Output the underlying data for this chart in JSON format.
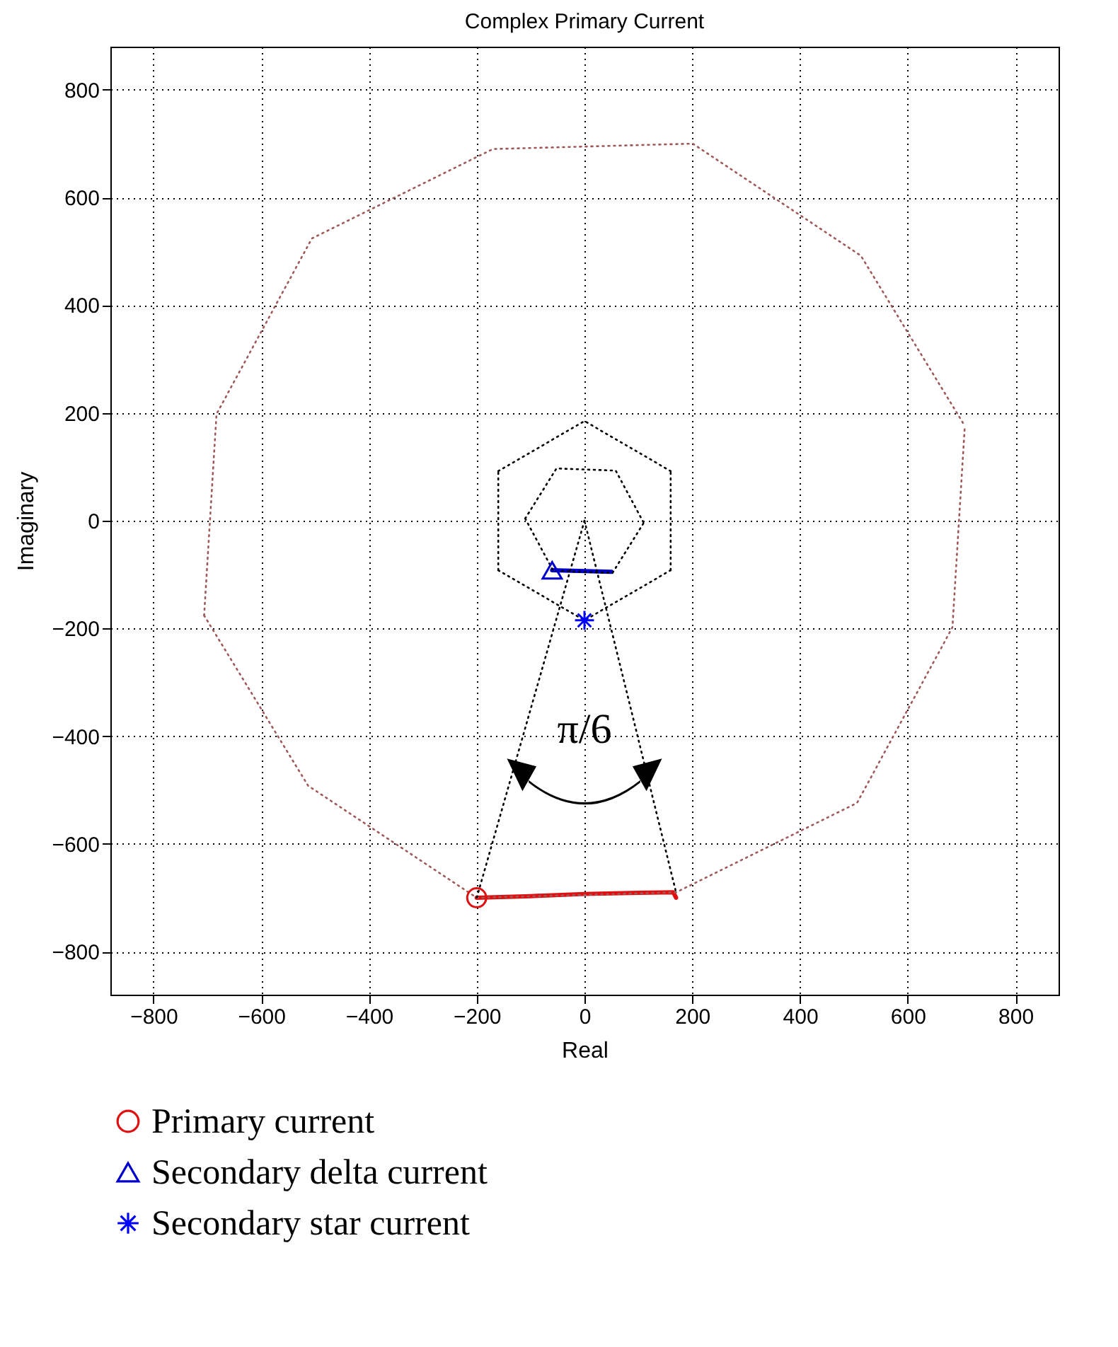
{
  "chart_data": {
    "type": "line",
    "title": "Complex Primary Current",
    "xlabel": "Real",
    "ylabel": "Imaginary",
    "xlim": [
      -880,
      880
    ],
    "ylim": [
      -880,
      880
    ],
    "xticks": [
      -800,
      -600,
      -400,
      -200,
      0,
      200,
      400,
      600,
      800
    ],
    "yticks": [
      -800,
      -600,
      -400,
      -200,
      0,
      200,
      400,
      600,
      800
    ],
    "grid": true,
    "legend": "bottom",
    "series": [
      {
        "color": "#e01010",
        "line_style": "solid",
        "x": [
          -200,
          -100,
          0,
          100,
          165,
          170
        ],
        "values": [
          -700,
          -697,
          -693,
          -691,
          -690,
          -700
        ]
      },
      {
        "color": "#0000cc",
        "line_style": "solid",
        "x": [
          -60,
          50
        ],
        "values": [
          -92,
          -95
        ]
      },
      {
        "type": "scatter",
        "name": "Primary current",
        "color": "#e01010",
        "marker": "circle",
        "x": [
          -200
        ],
        "values": [
          -700
        ]
      },
      {
        "type": "scatter",
        "name": "Secondary delta current",
        "color": "#0000cc",
        "marker": "triangle",
        "x": [
          -60
        ],
        "values": [
          -92
        ]
      },
      {
        "type": "scatter",
        "name": "Secondary star current",
        "color": "#0000ff",
        "marker": "cross",
        "x": [
          0
        ],
        "values": [
          -185
        ]
      },
      {
        "color": "#9e5a5a",
        "line_style": "dotted",
        "x": [
          -706,
          -513,
          -200,
          170,
          506,
          683,
          706
        ],
        "values": [
          -176,
          -492,
          -700,
          -690,
          -524,
          -198,
          176
        ]
      },
      {
        "color": "#9e5a5a",
        "line_style": "dotted",
        "x": [
          -706,
          -683,
          -506,
          -170,
          201,
          513,
          706
        ],
        "values": [
          -176,
          198,
          524,
          690,
          700,
          492,
          176
        ]
      },
      {
        "color": "#000000",
        "line_style": "dotted",
        "x": [
          -160,
          0,
          160
        ],
        "values": [
          92,
          185,
          92
        ]
      },
      {
        "color": "#000000",
        "line_style": "dotted",
        "x": [
          -160,
          0,
          160
        ],
        "values": [
          -92,
          -185,
          -92
        ]
      },
      {
        "color": "#000000",
        "line_style": "dotted",
        "x": [
          -160,
          -160
        ],
        "values": [
          -92,
          92
        ]
      },
      {
        "color": "#000000",
        "line_style": "dotted",
        "x": [
          160,
          160
        ],
        "values": [
          -92,
          92
        ]
      },
      {
        "color": "#000000",
        "line_style": "dotted",
        "x": [
          -110,
          -58,
          52,
          110
        ],
        "values": [
          4,
          -93,
          -97,
          -4
        ]
      },
      {
        "color": "#000000",
        "line_style": "dotted",
        "x": [
          -110,
          -52,
          58,
          110
        ],
        "values": [
          4,
          97,
          93,
          -4
        ]
      },
      {
        "color": "#000000",
        "line_style": "dotted",
        "x": [
          0,
          -200
        ],
        "values": [
          0,
          -700
        ]
      },
      {
        "color": "#000000",
        "line_style": "dotted",
        "x": [
          0,
          170
        ],
        "values": [
          0,
          -690
        ]
      }
    ],
    "annotations": [
      "π/6"
    ]
  }
}
